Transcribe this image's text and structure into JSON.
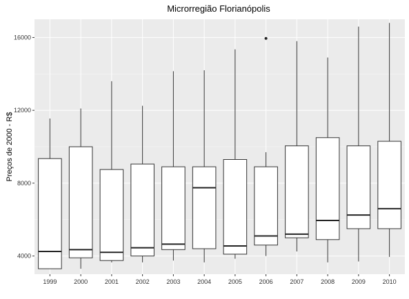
{
  "chart_data": {
    "type": "boxplot",
    "title": "Microrregião  Florianópolis",
    "xlabel": "",
    "ylabel": "Preços de 2000 - R$",
    "ylim": [
      3000,
      17000
    ],
    "yticks": [
      4000,
      8000,
      12000,
      16000
    ],
    "ytick_labels": [
      "4000",
      "8000",
      "12000",
      "16000"
    ],
    "grid": true,
    "categories": [
      "1999",
      "2000",
      "2001",
      "2002",
      "2003",
      "2004",
      "2005",
      "2006",
      "2007",
      "2008",
      "2009",
      "2010"
    ],
    "boxes": [
      {
        "category": "1999",
        "min": 3300,
        "q1": 3300,
        "median": 4250,
        "q3": 9350,
        "max": 11550,
        "outliers": []
      },
      {
        "category": "2000",
        "min": 3300,
        "q1": 3900,
        "median": 4350,
        "q3": 10000,
        "max": 12100,
        "outliers": []
      },
      {
        "category": "2001",
        "min": 3650,
        "q1": 3750,
        "median": 4200,
        "q3": 8750,
        "max": 13600,
        "outliers": []
      },
      {
        "category": "2002",
        "min": 3650,
        "q1": 4000,
        "median": 4450,
        "q3": 9050,
        "max": 12250,
        "outliers": []
      },
      {
        "category": "2003",
        "min": 3750,
        "q1": 4350,
        "median": 4650,
        "q3": 8900,
        "max": 14150,
        "outliers": []
      },
      {
        "category": "2004",
        "min": 3650,
        "q1": 4400,
        "median": 7750,
        "q3": 8900,
        "max": 14200,
        "outliers": []
      },
      {
        "category": "2005",
        "min": 3850,
        "q1": 4100,
        "median": 4550,
        "q3": 9300,
        "max": 15350,
        "outliers": []
      },
      {
        "category": "2006",
        "min": 4000,
        "q1": 4600,
        "median": 5100,
        "q3": 8900,
        "max": 9700,
        "outliers": [
          15950
        ]
      },
      {
        "category": "2007",
        "min": 4250,
        "q1": 5000,
        "median": 5200,
        "q3": 10050,
        "max": 15800,
        "outliers": []
      },
      {
        "category": "2008",
        "min": 3650,
        "q1": 4900,
        "median": 5950,
        "q3": 10500,
        "max": 14900,
        "outliers": []
      },
      {
        "category": "2009",
        "min": 3700,
        "q1": 5500,
        "median": 6250,
        "q3": 10050,
        "max": 16600,
        "outliers": []
      },
      {
        "category": "2010",
        "min": 3950,
        "q1": 5500,
        "median": 6600,
        "q3": 10300,
        "max": 16800,
        "outliers": []
      }
    ]
  }
}
